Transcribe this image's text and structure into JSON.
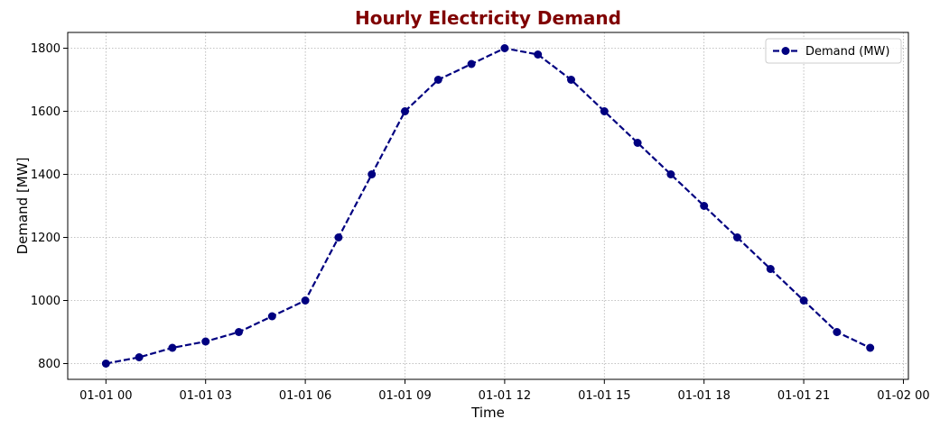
{
  "chart_data": {
    "type": "line",
    "title": "Hourly Electricity Demand",
    "xlabel": "Time",
    "ylabel": "Demand [MW]",
    "x": [
      "01-01 00",
      "01-01 01",
      "01-01 02",
      "01-01 03",
      "01-01 04",
      "01-01 05",
      "01-01 06",
      "01-01 07",
      "01-01 08",
      "01-01 09",
      "01-01 10",
      "01-01 11",
      "01-01 12",
      "01-01 13",
      "01-01 14",
      "01-01 15",
      "01-01 16",
      "01-01 17",
      "01-01 18",
      "01-01 19",
      "01-01 20",
      "01-01 21",
      "01-01 22",
      "01-01 23"
    ],
    "x_ticks": [
      "01-01 00",
      "01-01 03",
      "01-01 06",
      "01-01 09",
      "01-01 12",
      "01-01 15",
      "01-01 18",
      "01-01 21",
      "01-02 00"
    ],
    "series": [
      {
        "name": "Demand (MW)",
        "values": [
          800,
          820,
          850,
          870,
          900,
          950,
          1000,
          1200,
          1400,
          1600,
          1700,
          1750,
          1800,
          1780,
          1700,
          1600,
          1500,
          1400,
          1300,
          1200,
          1100,
          1000,
          900,
          850
        ]
      }
    ],
    "y_ticks": [
      800,
      1000,
      1200,
      1400,
      1600,
      1800
    ],
    "ylim": [
      750,
      1850
    ],
    "grid": true,
    "legend_position": "top-right",
    "colors": {
      "line": "#000080",
      "title": "#800000",
      "grid": "#b0b0b0"
    }
  }
}
